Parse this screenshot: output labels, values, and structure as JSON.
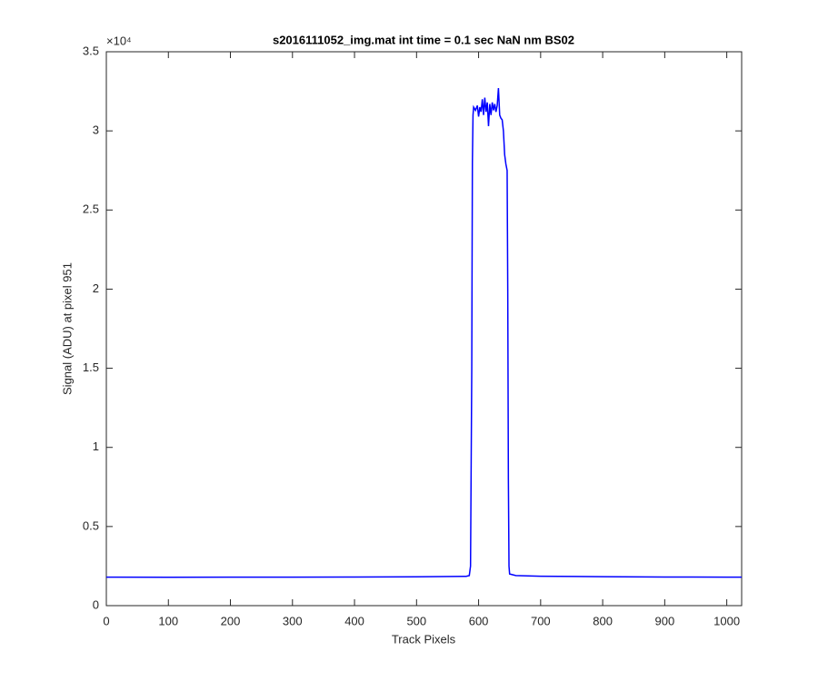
{
  "chart_data": {
    "type": "line",
    "title": "s2016111052_img.mat int time = 0.1 sec  NaN nm BS02",
    "x_label": "Track Pixels",
    "y_label": "Signal (ADU) at pixel 951",
    "y_multiplier": "×10⁴",
    "xlim": [
      0,
      1024
    ],
    "ylim": [
      0,
      35000
    ],
    "xticks": [
      0,
      100,
      200,
      300,
      400,
      500,
      600,
      700,
      800,
      900,
      1000
    ],
    "yticks": [
      0,
      {
        "value": 5000,
        "label": "0.5"
      },
      {
        "value": 10000,
        "label": "1"
      },
      {
        "value": 15000,
        "label": "1.5"
      },
      {
        "value": 20000,
        "label": "2"
      },
      {
        "value": 25000,
        "label": "2.5"
      },
      {
        "value": 30000,
        "label": "3"
      },
      {
        "value": 35000,
        "label": "3.5"
      }
    ],
    "grid": false,
    "series": [
      {
        "color": "#0000ff",
        "x": [
          0,
          100,
          200,
          300,
          400,
          500,
          580,
          585,
          587,
          589,
          590,
          591,
          592,
          595,
          598,
          600,
          602,
          604,
          606,
          608,
          610,
          612,
          614,
          616,
          618,
          620,
          622,
          624,
          626,
          628,
          630,
          632,
          634,
          636,
          638,
          640,
          642,
          644,
          646,
          647,
          648,
          649,
          650,
          660,
          700,
          800,
          900,
          1000,
          1024
        ],
        "values": [
          1800,
          1790,
          1800,
          1800,
          1810,
          1820,
          1850,
          1900,
          2500,
          15000,
          28000,
          31000,
          31500,
          31300,
          31600,
          30900,
          31500,
          31200,
          32000,
          31000,
          32100,
          31200,
          31800,
          30300,
          31700,
          31000,
          31800,
          31300,
          31700,
          31200,
          31600,
          32700,
          31000,
          30800,
          30700,
          30000,
          28500,
          27900,
          27500,
          20000,
          8000,
          2500,
          2000,
          1900,
          1860,
          1830,
          1810,
          1800,
          1800
        ]
      }
    ]
  }
}
